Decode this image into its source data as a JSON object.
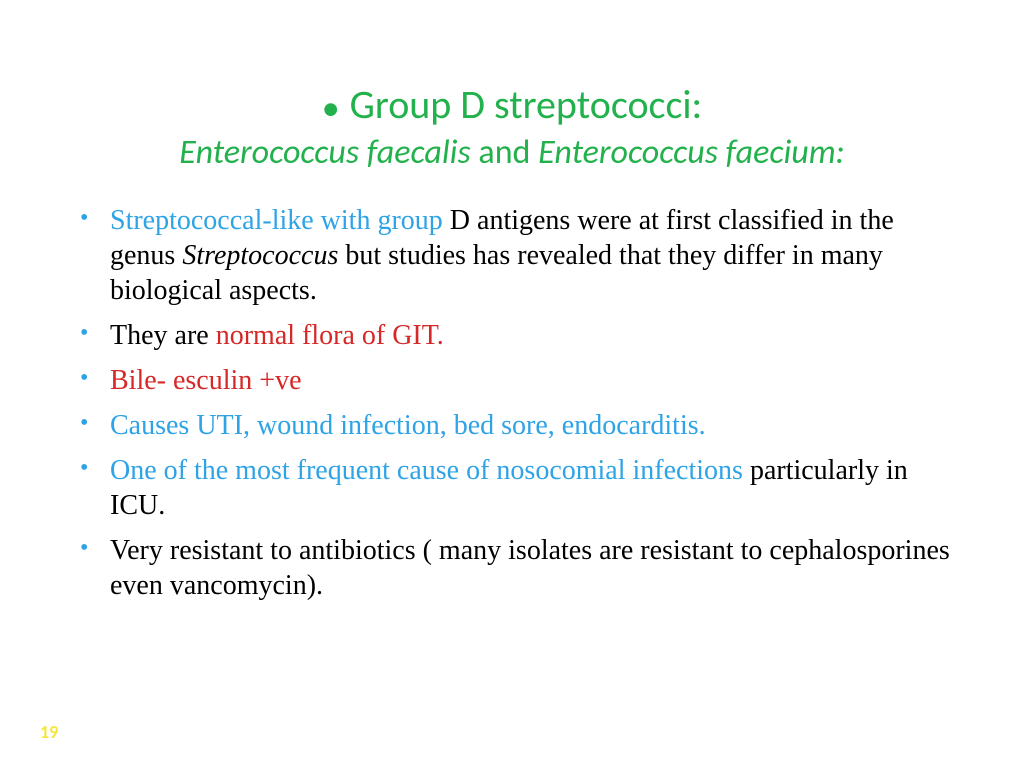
{
  "colors": {
    "title_green": "#22b14c",
    "bullet_blue": "#2ea3e6",
    "text_red": "#d62828",
    "text_black": "#000000",
    "page_num_yellow": "#f5e63d",
    "background": "#ffffff"
  },
  "typography": {
    "title_fontsize": 40,
    "subtitle_fontsize": 34,
    "body_fontsize": 28,
    "pagenum_fontsize": 18,
    "title_font": "Calibri",
    "body_font": "Times New Roman"
  },
  "title": {
    "line1": "Group D streptococci:",
    "line2_part1": "Enterococcus faecalis",
    "line2_and": " and ",
    "line2_part2": "Enterococcus faecium:"
  },
  "bullets": [
    {
      "spans": [
        {
          "text": "Streptococcal-like with group ",
          "color": "blue"
        },
        {
          "text": "D antigens were at first classified in the genus ",
          "color": "black"
        },
        {
          "text": "Streptococcus",
          "color": "black",
          "italic": true
        },
        {
          "text": "  but studies has revealed that they differ in many biological aspects.",
          "color": "black"
        }
      ]
    },
    {
      "spans": [
        {
          "text": "They are ",
          "color": "black"
        },
        {
          "text": "normal flora of GIT.",
          "color": "red"
        }
      ]
    },
    {
      "spans": [
        {
          "text": "Bile- esculin +ve",
          "color": "red"
        }
      ]
    },
    {
      "spans": [
        {
          "text": "Causes UTI, wound infection, bed sore, endocarditis.",
          "color": "blue"
        }
      ]
    },
    {
      "spans": [
        {
          "text": "One of the most frequent cause of nosocomial infections ",
          "color": "blue"
        },
        {
          "text": "particularly in ICU.",
          "color": "black"
        }
      ]
    },
    {
      "spans": [
        {
          "text": "Very resistant to antibiotics ( many isolates are resistant to cephalosporines even vancomycin).",
          "color": "black"
        }
      ]
    }
  ],
  "page_number": "19"
}
